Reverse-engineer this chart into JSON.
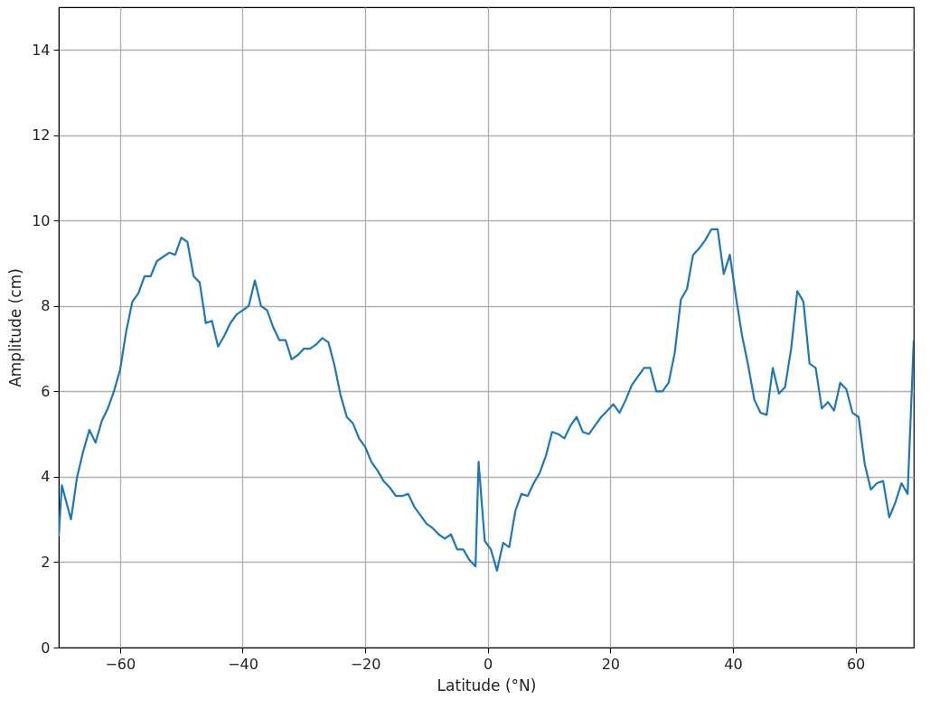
{
  "chart_data": {
    "type": "line",
    "xlabel": "Latitude (°N)",
    "ylabel": "Amplitude (cm)",
    "xlim": [
      -70,
      69.5
    ],
    "ylim": [
      0,
      15
    ],
    "xticks": [
      -60,
      -40,
      -20,
      0,
      20,
      40,
      60
    ],
    "yticks": [
      0,
      2,
      4,
      6,
      8,
      10,
      12,
      14
    ],
    "grid": true,
    "x": [
      -70,
      -69.5,
      -68,
      -67,
      -66,
      -65,
      -64,
      -63,
      -62,
      -61,
      -60,
      -59,
      -58,
      -57,
      -56,
      -55,
      -54,
      -53,
      -52,
      -51,
      -50,
      -49,
      -48,
      -47,
      -46,
      -45,
      -44,
      -43,
      -42,
      -41,
      -40,
      -39,
      -38,
      -37,
      -36,
      -35,
      -34,
      -33,
      -32,
      -31,
      -30,
      -29,
      -28,
      -27,
      -26,
      -25,
      -24,
      -23,
      -22,
      -21,
      -20,
      -19,
      -18,
      -17,
      -16,
      -15,
      -14,
      -13,
      -12,
      -11,
      -10,
      -9,
      -8,
      -7,
      -6,
      -5,
      -4,
      -3,
      -2,
      -1.5,
      -0.5,
      0.5,
      1.5,
      2.5,
      3.5,
      4.5,
      5.5,
      6.5,
      7.5,
      8.5,
      9.5,
      10.5,
      11.5,
      12.5,
      13.5,
      14.5,
      15.5,
      16.5,
      17.5,
      18.5,
      19.5,
      20.5,
      21.5,
      22.5,
      23.5,
      24.5,
      25.5,
      26.5,
      27.5,
      28.5,
      29.5,
      30.5,
      31.5,
      32.5,
      33.5,
      34.5,
      35.5,
      36.5,
      37.5,
      38.5,
      39.5,
      40.5,
      41.5,
      42.5,
      43.5,
      44.5,
      45.5,
      46.5,
      47.5,
      48.5,
      49.5,
      50.5,
      51.5,
      52.5,
      53.5,
      54.5,
      55.5,
      56.5,
      57.5,
      58.5,
      59.5,
      60.5,
      61.5,
      62.5,
      63.5,
      64.5,
      65.5,
      66.5,
      67.5,
      68.5,
      69.5
    ],
    "series": [
      {
        "color": "#1f77b4",
        "values": [
          2.6,
          3.8,
          3.0,
          4.0,
          4.6,
          5.1,
          4.8,
          5.3,
          5.6,
          6.0,
          6.5,
          7.4,
          8.1,
          8.3,
          8.7,
          8.7,
          9.05,
          9.15,
          9.25,
          9.2,
          9.6,
          9.5,
          8.7,
          8.55,
          7.6,
          7.65,
          7.05,
          7.3,
          7.6,
          7.8,
          7.9,
          8.0,
          8.6,
          8.0,
          7.9,
          7.5,
          7.2,
          7.2,
          6.75,
          6.85,
          7.0,
          7.0,
          7.1,
          7.25,
          7.15,
          6.6,
          5.9,
          5.4,
          5.25,
          4.9,
          4.7,
          4.35,
          4.15,
          3.9,
          3.75,
          3.55,
          3.55,
          3.6,
          3.3,
          3.1,
          2.9,
          2.8,
          2.65,
          2.55,
          2.65,
          2.3,
          2.3,
          2.05,
          1.9,
          4.35,
          2.5,
          2.3,
          1.8,
          2.45,
          2.35,
          3.2,
          3.6,
          3.55,
          3.85,
          4.1,
          4.5,
          5.05,
          5.0,
          4.9,
          5.2,
          5.4,
          5.05,
          5.0,
          5.2,
          5.4,
          5.55,
          5.7,
          5.5,
          5.8,
          6.15,
          6.35,
          6.55,
          6.55,
          6.0,
          6.0,
          6.2,
          6.9,
          8.15,
          8.4,
          9.2,
          9.35,
          9.55,
          9.8,
          9.8,
          8.75,
          9.2,
          8.2,
          7.3,
          6.6,
          5.8,
          5.5,
          5.45,
          6.55,
          5.95,
          6.1,
          7.0,
          8.35,
          8.1,
          6.65,
          6.55,
          5.6,
          5.75,
          5.55,
          6.2,
          6.05,
          5.5,
          5.4,
          4.3,
          3.7,
          3.85,
          3.9,
          3.05,
          3.4,
          3.85,
          3.6,
          7.2
        ]
      }
    ]
  }
}
